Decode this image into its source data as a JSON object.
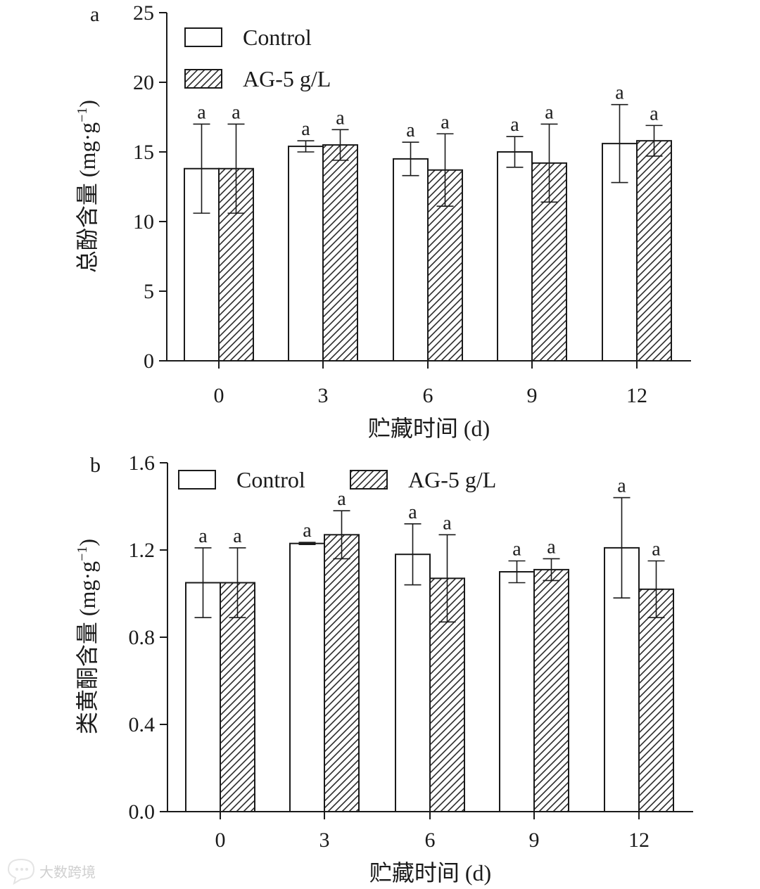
{
  "colors": {
    "axis": "#1a1a1a",
    "bar_fill": "#ffffff",
    "hatch": "#2a2a2a",
    "watermark": "#cfcfcf"
  },
  "watermark": {
    "text": "大数跨境",
    "icon": "chat-bubble-icon"
  },
  "chart_data": [
    {
      "type": "bar",
      "panel_label": "a",
      "categories": [
        "0",
        "3",
        "6",
        "9",
        "12"
      ],
      "xlabel": "贮藏时间 (d)",
      "ylabel": "总酚含量 (mg·g",
      "ylabel_sup": "−1",
      "ylabel_close": ")",
      "ylim": [
        0,
        25
      ],
      "yticks": [
        0,
        5,
        10,
        15,
        20,
        25
      ],
      "ytick_labels": [
        "0",
        "5",
        "10",
        "15",
        "20",
        "25"
      ],
      "legend_position": "top-left, stacked",
      "series": [
        {
          "name": "Control",
          "pattern": "plain",
          "values": [
            13.8,
            15.4,
            14.5,
            15.0,
            15.6
          ],
          "errors": [
            3.2,
            0.4,
            1.2,
            1.1,
            2.8
          ],
          "sig": [
            "a",
            "a",
            "a",
            "a",
            "a"
          ]
        },
        {
          "name": "AG-5 g/L",
          "pattern": "hatched",
          "values": [
            13.8,
            15.5,
            13.7,
            14.2,
            15.8
          ],
          "errors": [
            3.2,
            1.1,
            2.6,
            2.8,
            1.1
          ],
          "sig": [
            "a",
            "a",
            "a",
            "a",
            "a"
          ]
        }
      ]
    },
    {
      "type": "bar",
      "panel_label": "b",
      "categories": [
        "0",
        "3",
        "6",
        "9",
        "12"
      ],
      "xlabel": "贮藏时间 (d)",
      "ylabel": "类黄酮含量 (mg·g",
      "ylabel_sup": "−1",
      "ylabel_close": ")",
      "ylim": [
        0,
        1.6
      ],
      "yticks": [
        0,
        0.4,
        0.8,
        1.2,
        1.6
      ],
      "ytick_labels": [
        "0.0",
        "0.4",
        "0.8",
        "1.2",
        "1.6"
      ],
      "legend_position": "top, single row",
      "series": [
        {
          "name": "Control",
          "pattern": "plain",
          "values": [
            1.05,
            1.23,
            1.18,
            1.1,
            1.21
          ],
          "errors": [
            0.16,
            0.005,
            0.14,
            0.05,
            0.23
          ],
          "sig": [
            "a",
            "a",
            "a",
            "a",
            "a"
          ]
        },
        {
          "name": "AG-5 g/L",
          "pattern": "hatched",
          "values": [
            1.05,
            1.27,
            1.07,
            1.11,
            1.02
          ],
          "errors": [
            0.16,
            0.11,
            0.2,
            0.05,
            0.13
          ],
          "sig": [
            "a",
            "a",
            "a",
            "a",
            "a"
          ]
        }
      ]
    }
  ]
}
